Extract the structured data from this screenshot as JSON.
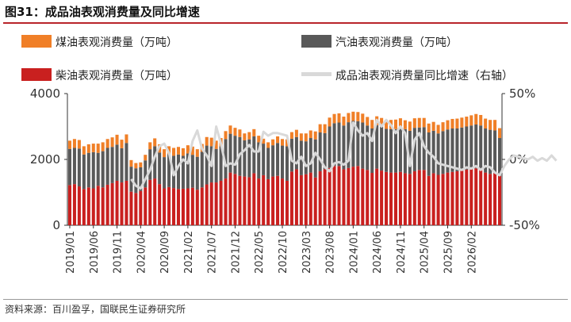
{
  "title": "图31：成品油表观消费量及同比增速",
  "source": "资料来源：百川盈孚，国联民生证券研究所",
  "colors": {
    "kerosene": "#f07f27",
    "gasoline": "#595959",
    "diesel": "#c9201f",
    "yoy": "#d9d9d9",
    "title_rule": "#b8242a"
  },
  "chart_data": {
    "type": "bar",
    "stacked": true,
    "x_tick_labels": [
      "2019/01",
      "2019/06",
      "2019/11",
      "2020/04",
      "2020/09",
      "2021/02",
      "2021/07",
      "2021/12",
      "2022/05",
      "2022/10",
      "2023/03",
      "2023/08",
      "2024/01",
      "2024/06",
      "2024/11",
      "2025/04",
      "2025/09",
      "2026/02"
    ],
    "x_tick_every": 5,
    "y_left": {
      "min": 0,
      "max": 4000,
      "ticks": [
        0,
        2000,
        4000
      ],
      "tick_labels": [
        "0",
        "2000",
        "4000"
      ]
    },
    "y_right": {
      "min": -50,
      "max": 50,
      "ticks": [
        -50,
        0,
        50
      ],
      "tick_labels": [
        "-50%",
        "0%",
        "50%"
      ]
    },
    "legend": {
      "kerosene": "煤油表观消费量（万吨）",
      "gasoline": "汽油表观消费量（万吨）",
      "diesel": "柴油表观消费量（万吨）",
      "yoy": "成品油表观消费量同比增速（右轴）"
    },
    "series": [
      {
        "name": "柴油表观消费量（万吨）",
        "key": "diesel",
        "axis": "left",
        "values": [
          1220,
          1250,
          1180,
          1100,
          1150,
          1120,
          1200,
          1150,
          1230,
          1280,
          1350,
          1300,
          1350,
          1020,
          980,
          1040,
          1150,
          1380,
          1420,
          1250,
          1120,
          1160,
          1130,
          1100,
          1110,
          1120,
          1140,
          1080,
          1150,
          1240,
          1300,
          1300,
          1350,
          1420,
          1600,
          1560,
          1500,
          1480,
          1460,
          1580,
          1420,
          1520,
          1400,
          1480,
          1500,
          1420,
          1350,
          1630,
          1700,
          1520,
          1550,
          1600,
          1450,
          1640,
          1700,
          1740,
          1800,
          1800,
          1700,
          1740,
          1780,
          1800,
          1720,
          1680,
          1590,
          1720,
          1660,
          1620,
          1600,
          1600,
          1620,
          1580,
          1560,
          1640,
          1680,
          1680,
          1500,
          1580,
          1530,
          1560,
          1600,
          1620,
          1640,
          1660,
          1690,
          1710,
          1730,
          1700,
          1600,
          1560,
          1580,
          1500
        ]
      },
      {
        "name": "汽油表观消费量（万吨）",
        "key": "gasoline",
        "axis": "left",
        "values": [
          1100,
          1100,
          1150,
          1050,
          1050,
          1100,
          1000,
          1100,
          1120,
          1100,
          1100,
          1040,
          1150,
          760,
          750,
          720,
          820,
          930,
          980,
          960,
          950,
          1000,
          980,
          1050,
          1000,
          1060,
          1000,
          1000,
          1080,
          1180,
          1100,
          1020,
          1050,
          1200,
          1180,
          1160,
          1180,
          1100,
          1150,
          1120,
          1100,
          960,
          950,
          950,
          1000,
          1000,
          1050,
          1000,
          980,
          1050,
          1000,
          1050,
          1160,
          1180,
          1100,
          1260,
          1300,
          1320,
          1330,
          1390,
          1390,
          1360,
          1400,
          1350,
          1350,
          1320,
          1330,
          1310,
          1320,
          1320,
          1340,
          1340,
          1310,
          1320,
          1290,
          1300,
          1320,
          1290,
          1260,
          1300,
          1310,
          1320,
          1300,
          1310,
          1310,
          1320,
          1330,
          1330,
          1340,
          1340,
          1300,
          1150
        ]
      },
      {
        "name": "煤油表观消费量（万吨）",
        "key": "kerosene",
        "axis": "left",
        "values": [
          250,
          270,
          260,
          250,
          260,
          260,
          280,
          270,
          270,
          290,
          300,
          260,
          260,
          200,
          160,
          150,
          170,
          210,
          240,
          250,
          240,
          240,
          240,
          230,
          230,
          250,
          250,
          230,
          240,
          260,
          260,
          250,
          250,
          240,
          250,
          240,
          230,
          210,
          220,
          220,
          200,
          150,
          170,
          180,
          200,
          200,
          210,
          200,
          220,
          220,
          240,
          230,
          240,
          250,
          270,
          270,
          280,
          280,
          270,
          280,
          280,
          280,
          270,
          260,
          260,
          270,
          270,
          270,
          280,
          290,
          290,
          270,
          280,
          290,
          290,
          280,
          270,
          270,
          260,
          270,
          280,
          290,
          300,
          300,
          300,
          310,
          320,
          320,
          300,
          300,
          320,
          300
        ]
      },
      {
        "name": "成品油表观消费量同比增速（右轴）",
        "key": "yoy",
        "axis": "right",
        "type": "line",
        "start_index": 13,
        "values": [
          -15,
          -20,
          -22,
          -15,
          -8,
          2,
          10,
          12,
          5,
          -12,
          -5,
          0,
          -3,
          14,
          22,
          8,
          3,
          -5,
          25,
          12,
          -5,
          -3,
          -4,
          4,
          7,
          11,
          6,
          6,
          21,
          18,
          20,
          20,
          19,
          18,
          -1,
          -3,
          2,
          -5,
          -3,
          5,
          0,
          -6,
          -9,
          -3,
          -2,
          -4,
          -1,
          28,
          22,
          18,
          20,
          14,
          30,
          25,
          30,
          26,
          20,
          25,
          20,
          -5,
          15,
          20,
          10,
          5,
          2,
          -3,
          -4,
          -5,
          -6,
          -7,
          -8,
          -6,
          -7,
          -5,
          -8,
          -5,
          -6,
          -10,
          -12,
          -5,
          0,
          3,
          2,
          1,
          0,
          2,
          -1,
          1,
          -1,
          3,
          -1
        ]
      }
    ]
  }
}
